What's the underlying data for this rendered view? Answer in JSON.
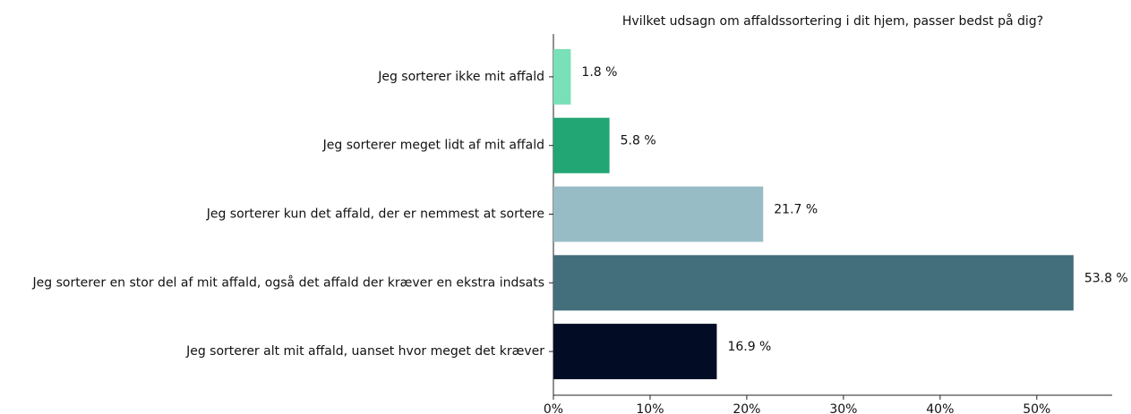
{
  "chart_data": {
    "type": "barh",
    "title": "Hvilket udsagn om affaldssortering i dit hjem, passer bedst på dig?",
    "categories": [
      "Jeg sorterer ikke mit affald",
      "Jeg sorterer meget lidt af mit affald",
      "Jeg sorterer kun det affald, der er nemmest at sortere",
      "Jeg sorterer en stor del af mit affald, også det affald der kræver en ekstra indsats",
      "Jeg sorterer alt mit affald, uanset hvor meget det kræver"
    ],
    "values": [
      1.8,
      5.8,
      21.7,
      53.8,
      16.9
    ],
    "value_labels": [
      "1.8 %",
      "5.8 %",
      "21.7 %",
      "53.8 %",
      "16.9 %"
    ],
    "colors": [
      "#79e0b8",
      "#22a673",
      "#98bcc5",
      "#436e7b",
      "#020d25"
    ],
    "xlim": [
      0,
      57.8
    ],
    "xticks": [
      {
        "value": 0,
        "label": "0%"
      },
      {
        "value": 10,
        "label": "10%"
      },
      {
        "value": 20,
        "label": "20%"
      },
      {
        "value": 30,
        "label": "30%"
      },
      {
        "value": 40,
        "label": "40%"
      },
      {
        "value": 50,
        "label": "50%"
      }
    ]
  }
}
